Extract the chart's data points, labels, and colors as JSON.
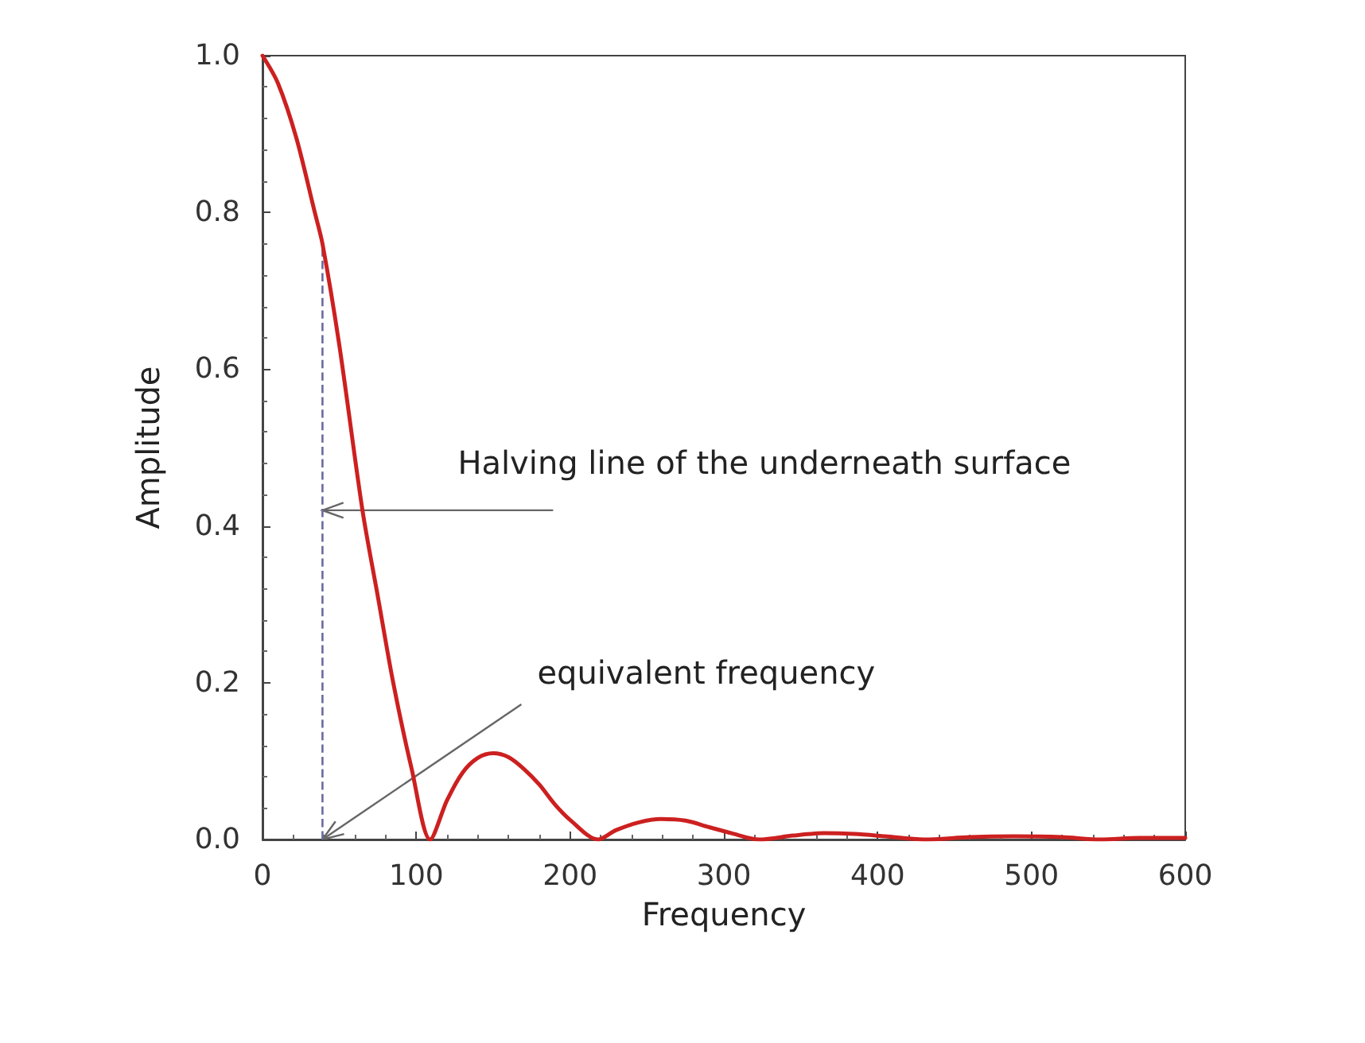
{
  "chart_data": {
    "type": "line",
    "xlabel": "Frequency",
    "ylabel": "Amplitude",
    "xlim": [
      0,
      600
    ],
    "xticks": [
      0,
      100,
      200,
      300,
      400,
      500,
      600
    ],
    "ylim": [
      0,
      1
    ],
    "yticks": [
      {
        "value": 0,
        "label": "0.0"
      },
      {
        "value": 0.2,
        "label": "0.2"
      },
      {
        "value": 0.4,
        "label": "0.4"
      },
      {
        "value": 0.6,
        "label": "0.6"
      },
      {
        "value": 0.8,
        "label": "0.8"
      },
      {
        "value": 1,
        "label": "1.0"
      }
    ],
    "grid": false,
    "marker": "none",
    "line_style": "solid",
    "series": [
      {
        "color": "#cc2020",
        "x": [
          0,
          10,
          22,
          34,
          39,
          50,
          65,
          75,
          85,
          97,
          109,
          120,
          130,
          140,
          150,
          160,
          170,
          180,
          190,
          200,
          218,
          230,
          245,
          259,
          275,
          290,
          305,
          323,
          345,
          365,
          385,
          405,
          430,
          460,
          490,
          520,
          545,
          570,
          600
        ],
        "values": [
          1.0,
          0.965,
          0.895,
          0.8,
          0.76,
          0.63,
          0.42,
          0.31,
          0.2,
          0.09,
          0.0,
          0.05,
          0.085,
          0.104,
          0.11,
          0.105,
          0.09,
          0.07,
          0.045,
          0.025,
          0.0,
          0.012,
          0.022,
          0.026,
          0.024,
          0.016,
          0.008,
          0.0,
          0.005,
          0.008,
          0.007,
          0.004,
          0.0,
          0.003,
          0.004,
          0.003,
          0.0,
          0.002,
          0.002
        ]
      }
    ],
    "ref_lines": [
      {
        "axis": "x",
        "value": 39,
        "color": "#6a6aa0",
        "line_style": "dashed"
      }
    ],
    "annotations": [
      {
        "text": "Halving line of the underneath surface",
        "x": 39,
        "y": 0.42
      },
      {
        "text": "equivalent frequency",
        "x": 39,
        "y": 0
      }
    ]
  }
}
